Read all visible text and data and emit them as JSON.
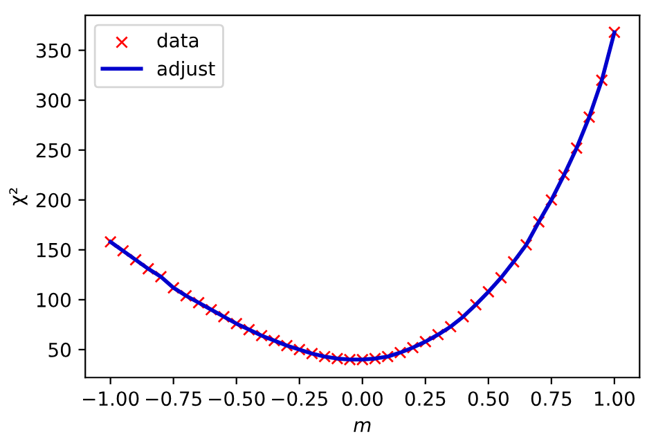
{
  "chart_data": {
    "type": "line",
    "xlabel": "m",
    "ylabel": "χ²",
    "x": [
      -1.0,
      -0.95,
      -0.9,
      -0.85,
      -0.8,
      -0.75,
      -0.7,
      -0.65,
      -0.6,
      -0.55,
      -0.5,
      -0.45,
      -0.4,
      -0.35,
      -0.3,
      -0.25,
      -0.2,
      -0.15,
      -0.1,
      -0.05,
      0.0,
      0.05,
      0.1,
      0.15,
      0.2,
      0.25,
      0.3,
      0.35,
      0.4,
      0.45,
      0.5,
      0.55,
      0.6,
      0.65,
      0.7,
      0.75,
      0.8,
      0.85,
      0.9,
      0.95,
      1.0
    ],
    "series": [
      {
        "name": "data",
        "type": "scatter",
        "marker": "cross",
        "color": "#ff0000",
        "values": [
          158,
          149,
          140,
          131,
          123,
          112,
          104,
          97,
          90,
          83,
          76,
          70,
          64,
          59,
          54,
          50,
          46,
          43,
          41,
          40,
          40,
          41,
          43,
          47,
          52,
          58,
          65,
          73,
          83,
          95,
          108,
          122,
          138,
          155,
          178,
          200,
          225,
          252,
          283,
          320,
          368
        ]
      },
      {
        "name": "adjust",
        "line_style": "solid",
        "color": "#0000cc",
        "values": [
          158,
          149,
          140,
          131,
          123,
          112,
          104,
          97,
          90,
          83,
          76,
          70,
          64,
          59,
          54,
          50,
          46,
          43,
          41,
          40,
          40,
          41,
          43,
          47,
          52,
          58,
          65,
          73,
          83,
          95,
          108,
          122,
          138,
          155,
          178,
          200,
          225,
          252,
          283,
          320,
          368
        ]
      }
    ],
    "xlim": [
      -1.1,
      1.1
    ],
    "ylim": [
      22,
      385
    ],
    "xticks": [
      {
        "value": -1.0,
        "label": "−1.00"
      },
      {
        "value": -0.75,
        "label": "−0.75"
      },
      {
        "value": -0.5,
        "label": "−0.50"
      },
      {
        "value": -0.25,
        "label": "−0.25"
      },
      {
        "value": 0.0,
        "label": "0.00"
      },
      {
        "value": 0.25,
        "label": "0.25"
      },
      {
        "value": 0.5,
        "label": "0.50"
      },
      {
        "value": 0.75,
        "label": "0.75"
      },
      {
        "value": 1.0,
        "label": "1.00"
      }
    ],
    "yticks": [
      50,
      100,
      150,
      200,
      250,
      300,
      350
    ],
    "legend": "top left",
    "grid": false
  }
}
